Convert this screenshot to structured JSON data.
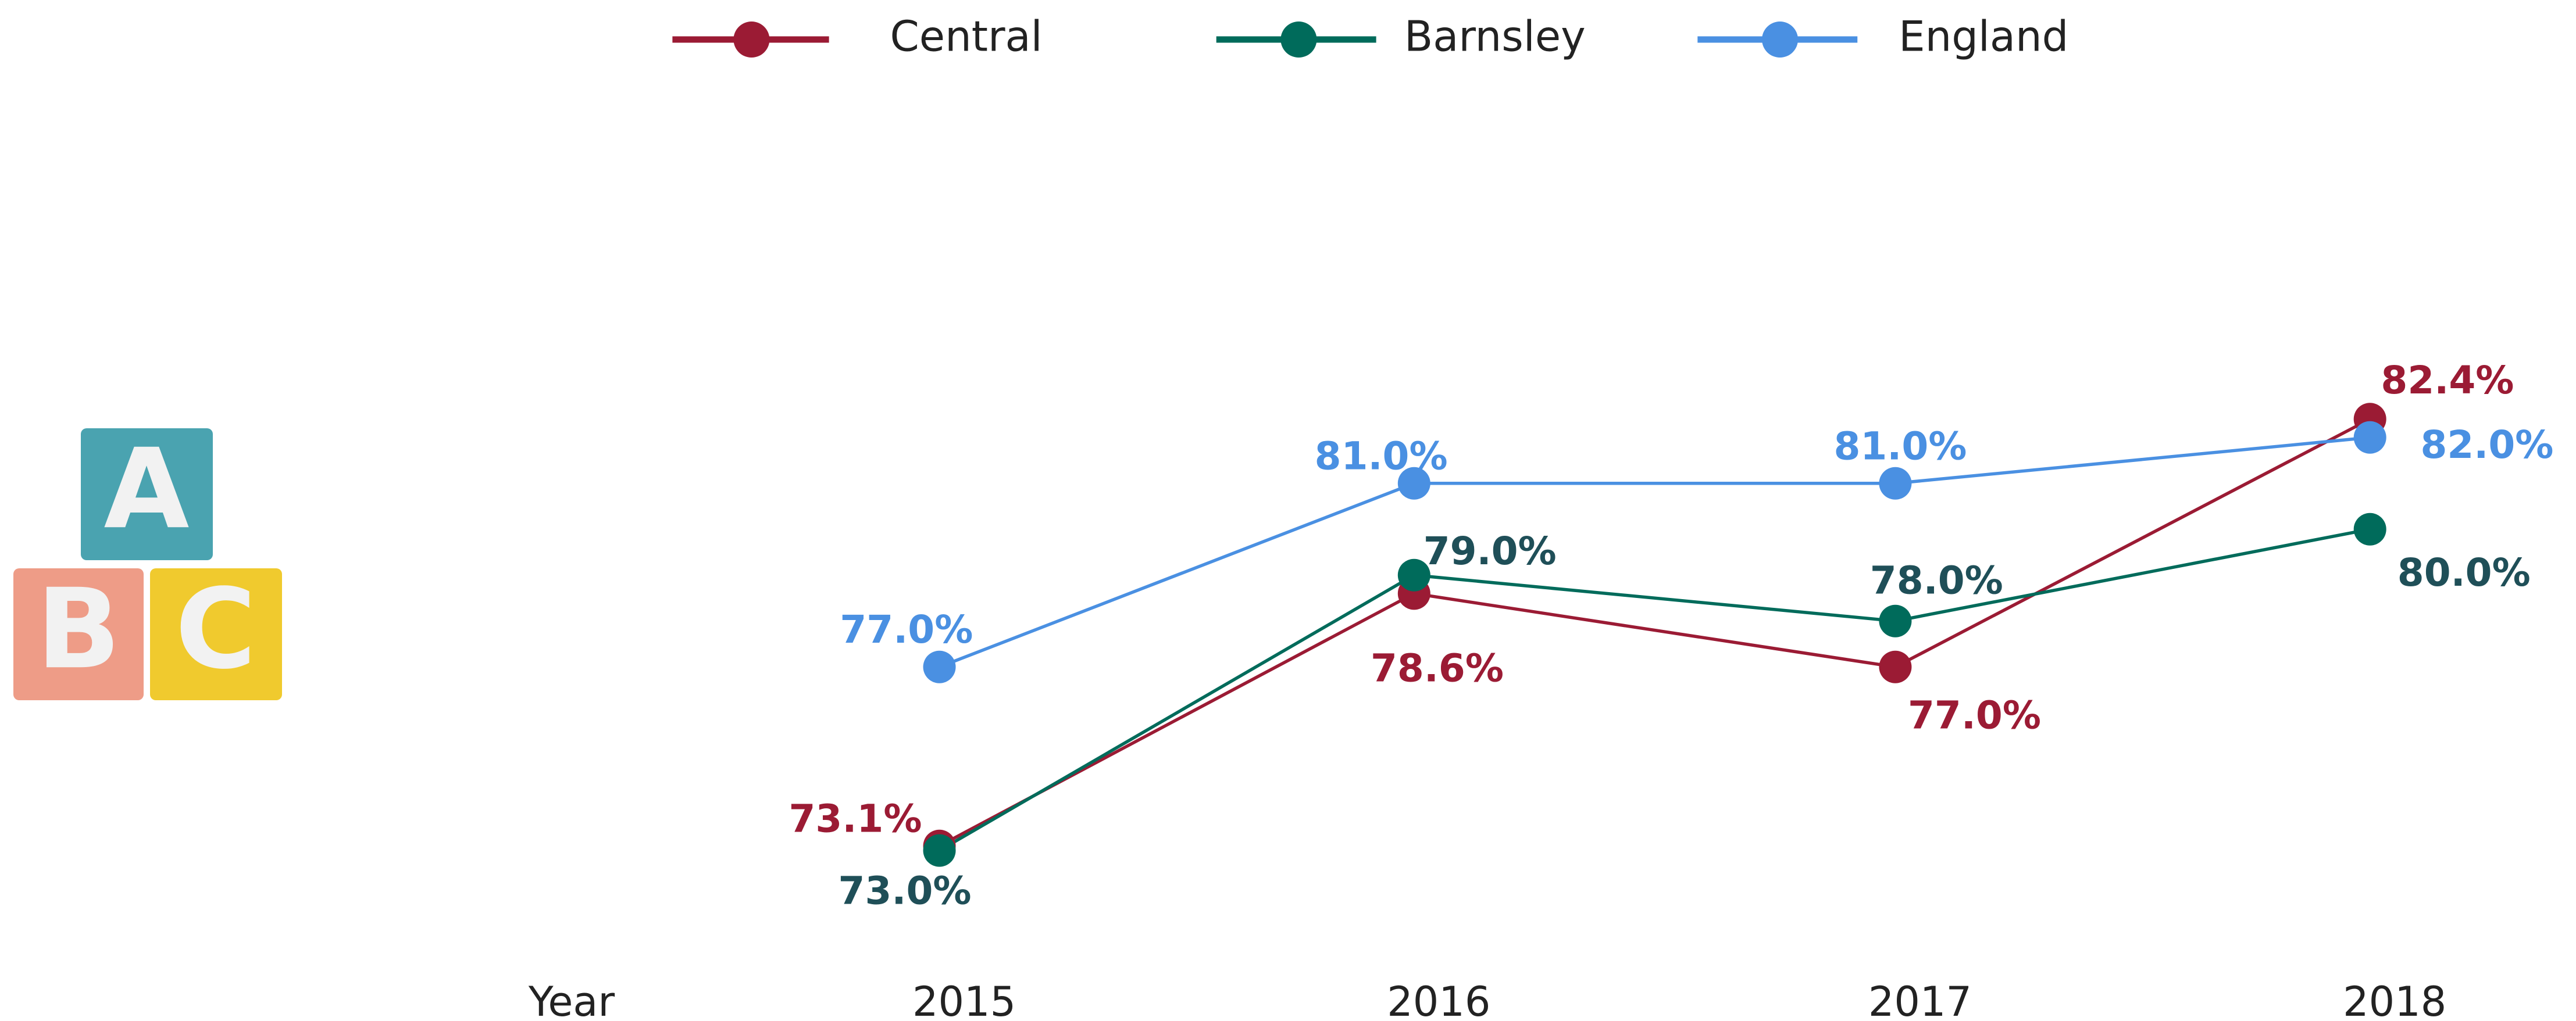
{
  "icon": {
    "letters": [
      "A",
      "B",
      "C"
    ]
  },
  "chart_data": {
    "type": "line",
    "x_label": "Year",
    "categories": [
      "2015",
      "2016",
      "2017",
      "2018"
    ],
    "ylim": [
      70,
      85
    ],
    "series": [
      {
        "name": "Central",
        "color": "#9b1b34",
        "label_color": "#9b1b34",
        "values": [
          73.1,
          78.6,
          77.0,
          82.4
        ],
        "value_labels": [
          "73.1%",
          "78.6%",
          "77.0%",
          "82.4%"
        ]
      },
      {
        "name": "Barnsley",
        "color": "#006b5b",
        "label_color": "#1f4f58",
        "values": [
          73.0,
          79.0,
          78.0,
          80.0
        ],
        "value_labels": [
          "73.0%",
          "79.0%",
          "78.0%",
          "80.0%"
        ]
      },
      {
        "name": "England",
        "color": "#4a90e2",
        "label_color": "#4a90e2",
        "values": [
          77.0,
          81.0,
          81.0,
          82.0
        ],
        "value_labels": [
          "77.0%",
          "81.0%",
          "81.0%",
          "82.0%"
        ]
      }
    ]
  }
}
